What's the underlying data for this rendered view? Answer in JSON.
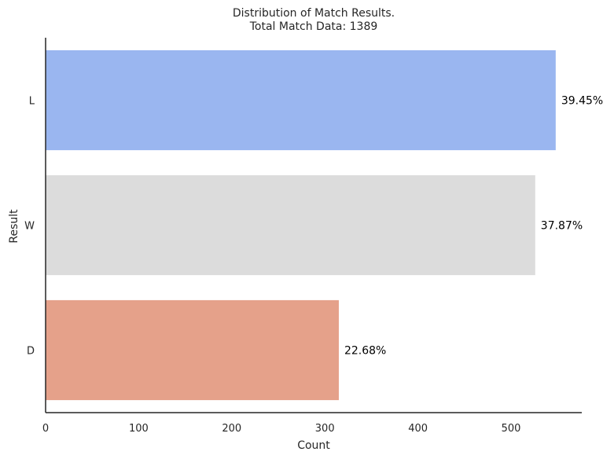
{
  "chart_data": {
    "type": "bar",
    "orientation": "horizontal",
    "title_line1": "Distribution of Match Results.",
    "title_line2": "Total Match Data: 1389",
    "xlabel": "Count",
    "ylabel": "Result",
    "categories": [
      "L",
      "W",
      "D"
    ],
    "values": [
      548,
      526,
      315
    ],
    "percent_labels": [
      "39.45%",
      "37.87%",
      "22.68%"
    ],
    "colors": [
      "#9ab6f0",
      "#dcdcdc",
      "#e5a18a"
    ],
    "xlim": [
      0,
      576
    ],
    "xticks": [
      0,
      100,
      200,
      300,
      400,
      500
    ],
    "grid": false
  }
}
